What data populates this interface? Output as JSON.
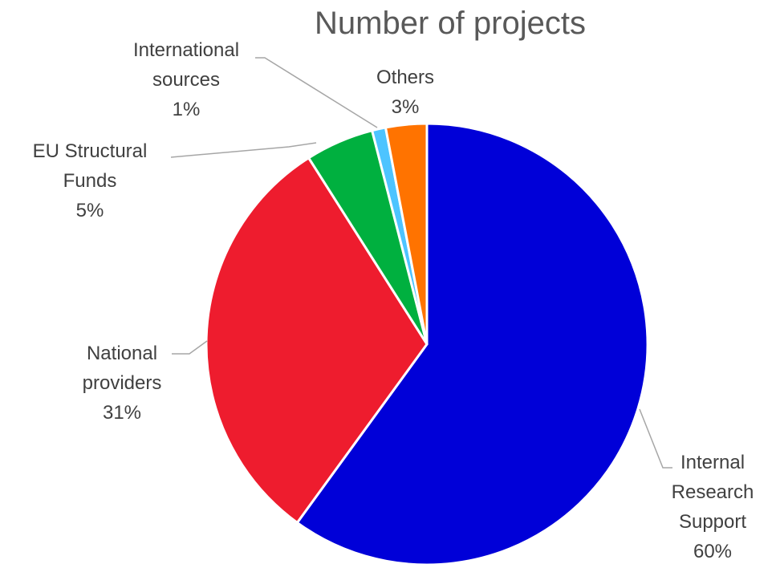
{
  "chart_data": {
    "type": "pie",
    "title": "Number of projects",
    "slices": [
      {
        "name_lines": [
          "Internal",
          "Research",
          "Support"
        ],
        "value": 60,
        "value_label": "60%",
        "color": "#0000D8"
      },
      {
        "name_lines": [
          "National",
          "providers"
        ],
        "value": 31,
        "value_label": "31%",
        "color": "#EE1C2E"
      },
      {
        "name_lines": [
          "EU Structural",
          "Funds"
        ],
        "value": 5,
        "value_label": "5%",
        "color": "#00B03F"
      },
      {
        "name_lines": [
          "International",
          "sources"
        ],
        "value": 1,
        "value_label": "1%",
        "color": "#4DC4FF"
      },
      {
        "name_lines": [
          "Others"
        ],
        "value": 3,
        "value_label": "3%",
        "color": "#FF7300"
      }
    ],
    "legend": "none",
    "data_labels": "outside with leader lines"
  }
}
